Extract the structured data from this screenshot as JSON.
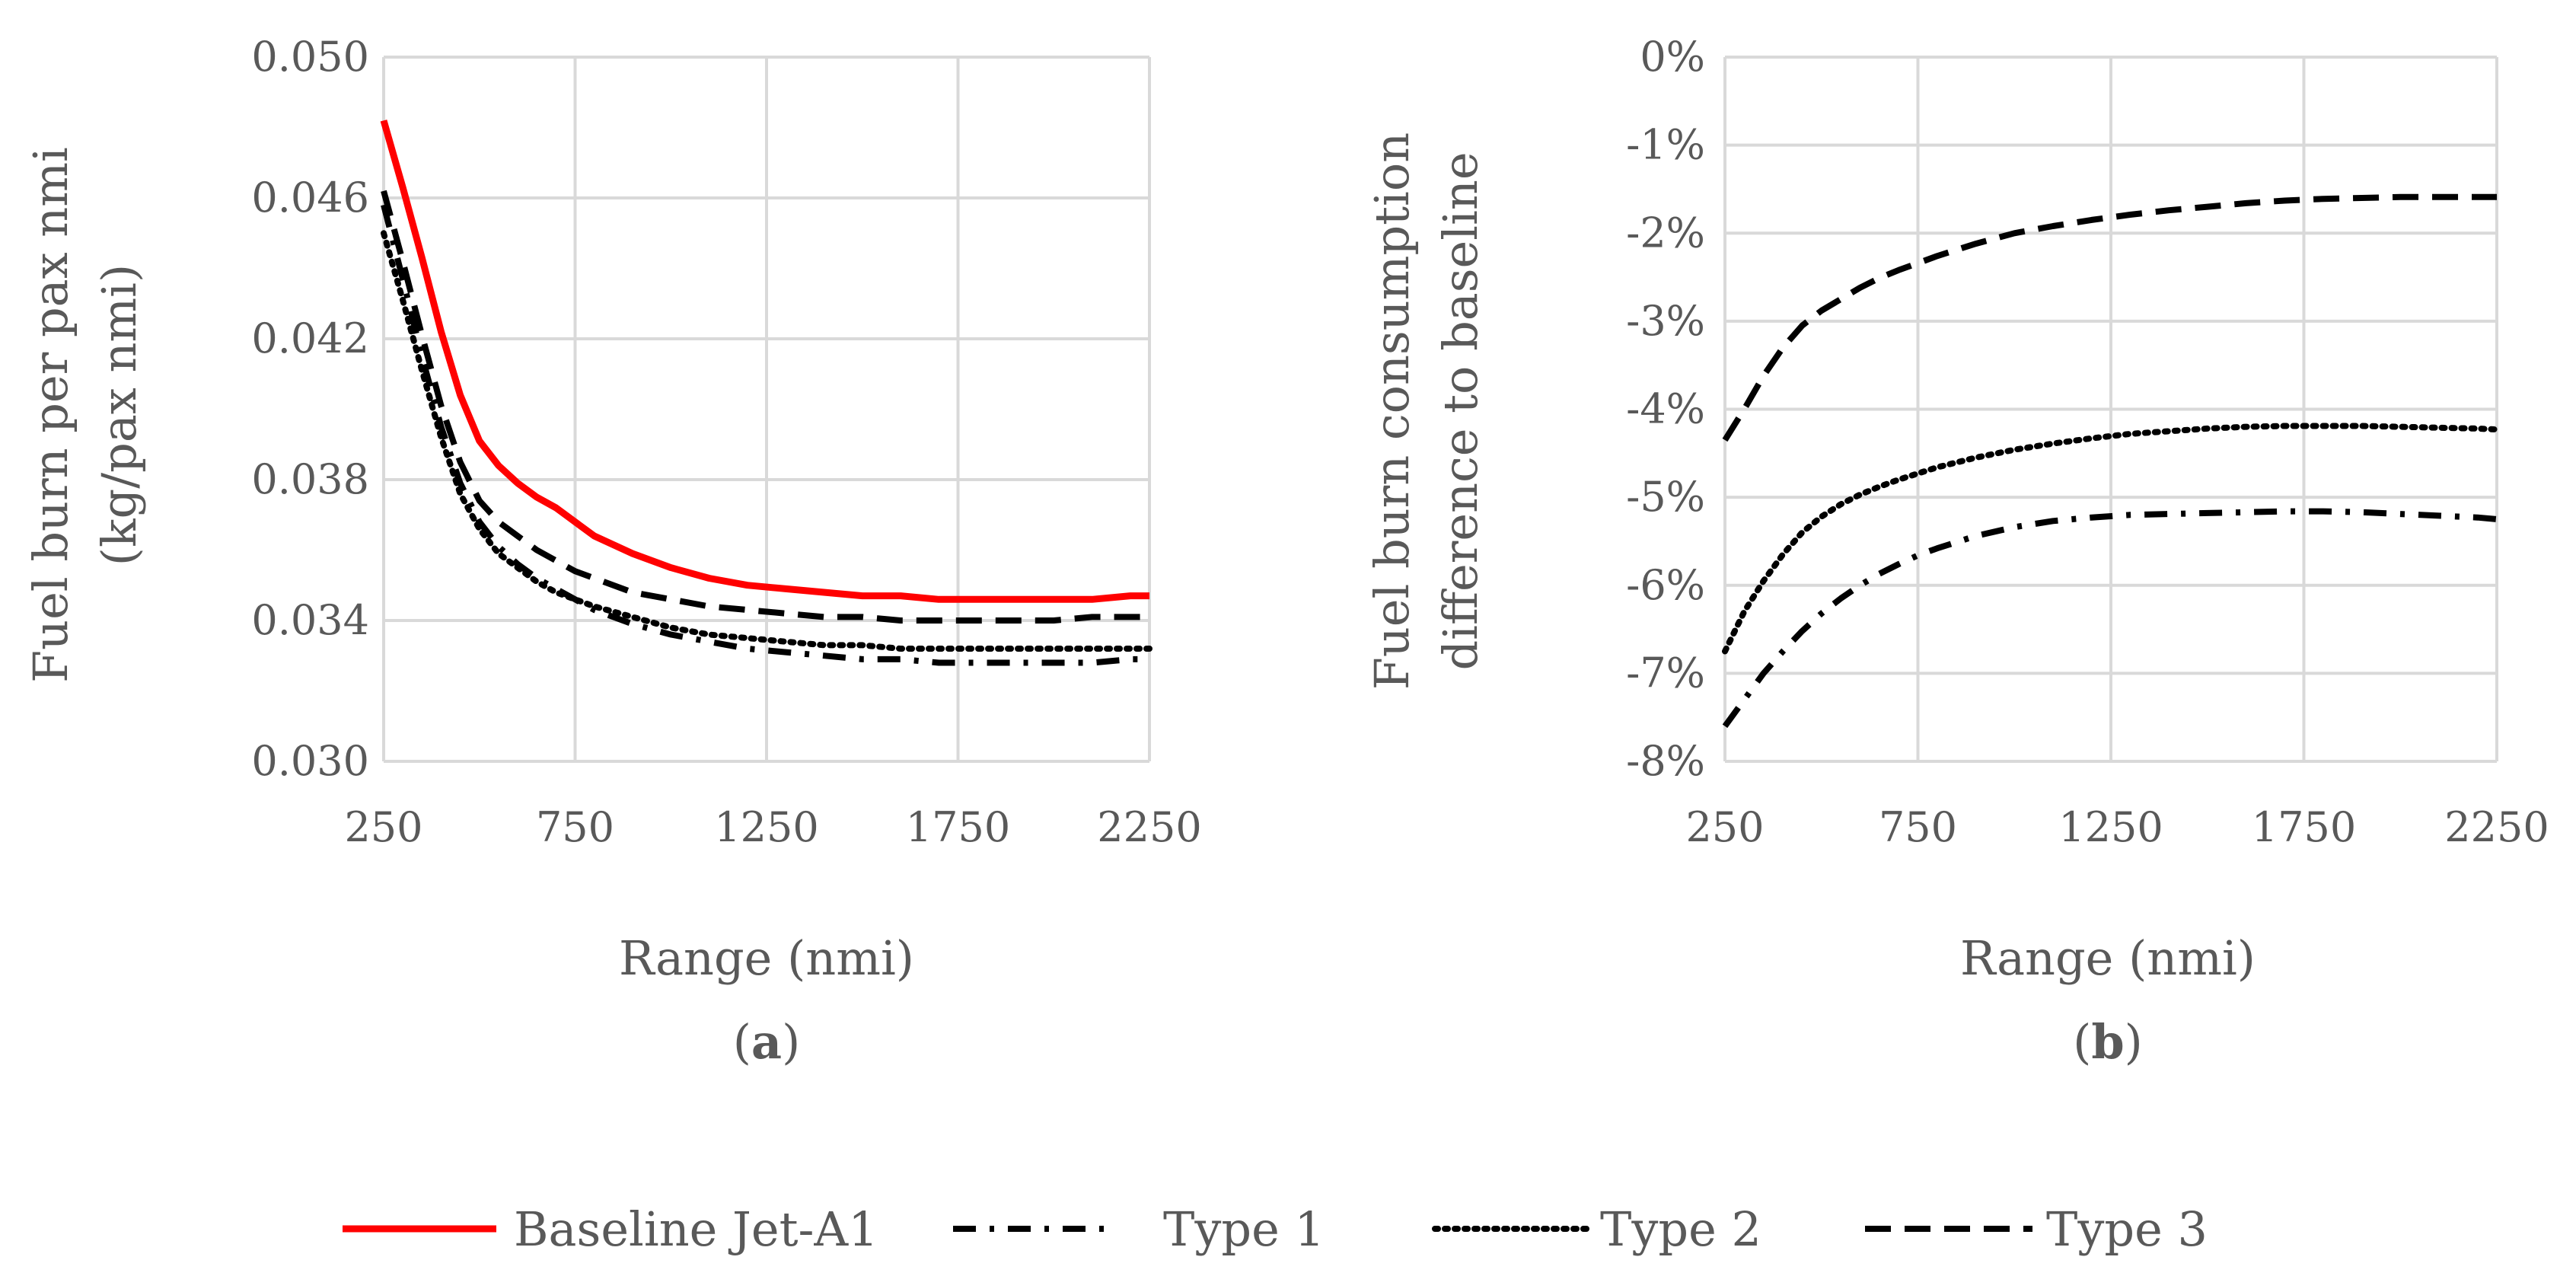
{
  "colors": {
    "baseline": "#ff0000",
    "types": "#000000",
    "grid": "#d9d9d9",
    "text": "#595959"
  },
  "chart_data": [
    {
      "type": "line",
      "xlabel": "Range (nmi)",
      "ylabel_lines": [
        "Fuel burn per pax nmi",
        "(kg/pax nmi)"
      ],
      "caption_letter": "a",
      "xlim": [
        250,
        2250
      ],
      "ylim": [
        0.03,
        0.05
      ],
      "xticks": [
        250,
        750,
        1250,
        1750,
        2250
      ],
      "yticks": [
        0.03,
        0.034,
        0.038,
        0.042,
        0.046,
        0.05
      ],
      "ytick_labels": [
        "0.030",
        "0.034",
        "0.038",
        "0.042",
        "0.046",
        "0.050"
      ],
      "x": [
        250,
        300,
        350,
        400,
        450,
        500,
        550,
        600,
        650,
        700,
        750,
        800,
        900,
        1000,
        1100,
        1200,
        1300,
        1400,
        1500,
        1600,
        1700,
        1800,
        1900,
        2000,
        2100,
        2200,
        2250
      ],
      "series": [
        {
          "name": "Baseline Jet-A1",
          "style": "solid",
          "values": [
            0.0482,
            0.0463,
            0.0443,
            0.0422,
            0.0404,
            0.0391,
            0.0384,
            0.0379,
            0.0375,
            0.0372,
            0.0368,
            0.0364,
            0.0359,
            0.0355,
            0.0352,
            0.035,
            0.0349,
            0.0348,
            0.0347,
            0.0347,
            0.0346,
            0.0346,
            0.0346,
            0.0346,
            0.0346,
            0.0347,
            0.0347
          ]
        },
        {
          "name": "Type 1",
          "style": "dashdot",
          "values": [
            0.0458,
            0.0437,
            0.0415,
            0.0395,
            0.0379,
            0.0368,
            0.0361,
            0.0356,
            0.0352,
            0.0349,
            0.0346,
            0.0343,
            0.0339,
            0.0336,
            0.0334,
            0.0332,
            0.0331,
            0.033,
            0.0329,
            0.0329,
            0.0328,
            0.0328,
            0.0328,
            0.0328,
            0.0328,
            0.0329,
            0.0329
          ]
        },
        {
          "name": "Type 2",
          "style": "dotted",
          "values": [
            0.045,
            0.0431,
            0.0411,
            0.0392,
            0.0376,
            0.0366,
            0.0359,
            0.0355,
            0.0351,
            0.0348,
            0.0346,
            0.0344,
            0.0341,
            0.0338,
            0.0336,
            0.0335,
            0.0334,
            0.0333,
            0.0333,
            0.0332,
            0.0332,
            0.0332,
            0.0332,
            0.0332,
            0.0332,
            0.0332,
            0.0332
          ]
        },
        {
          "name": "Type 3",
          "style": "dashed",
          "values": [
            0.0462,
            0.0442,
            0.0421,
            0.0401,
            0.0385,
            0.0374,
            0.0368,
            0.0364,
            0.036,
            0.0357,
            0.0354,
            0.0352,
            0.0348,
            0.0346,
            0.0344,
            0.0343,
            0.0342,
            0.0341,
            0.0341,
            0.034,
            0.034,
            0.034,
            0.034,
            0.034,
            0.0341,
            0.0341,
            0.0341
          ]
        }
      ]
    },
    {
      "type": "line",
      "xlabel": "Range (nmi)",
      "ylabel_lines": [
        "Fuel burn consumption",
        "difference to baseline"
      ],
      "caption_letter": "b",
      "xlim": [
        250,
        2250
      ],
      "ylim": [
        -8,
        0
      ],
      "xticks": [
        250,
        750,
        1250,
        1750,
        2250
      ],
      "yticks": [
        -8,
        -7,
        -6,
        -5,
        -4,
        -3,
        -2,
        -1,
        0
      ],
      "ytick_labels": [
        "-8%",
        "-7%",
        "-6%",
        "-5%",
        "-4%",
        "-3%",
        "-2%",
        "-1%",
        "0%"
      ],
      "x": [
        250,
        300,
        350,
        400,
        450,
        500,
        550,
        600,
        650,
        700,
        750,
        800,
        900,
        1000,
        1100,
        1200,
        1300,
        1400,
        1500,
        1600,
        1700,
        1800,
        1900,
        2000,
        2100,
        2200,
        2250
      ],
      "series": [
        {
          "name": "Type 1",
          "style": "dashdot",
          "values": [
            -7.6,
            -7.3,
            -7.0,
            -6.75,
            -6.52,
            -6.32,
            -6.15,
            -6.0,
            -5.87,
            -5.76,
            -5.66,
            -5.58,
            -5.44,
            -5.34,
            -5.27,
            -5.23,
            -5.2,
            -5.19,
            -5.18,
            -5.17,
            -5.16,
            -5.16,
            -5.17,
            -5.19,
            -5.21,
            -5.23,
            -5.25
          ]
        },
        {
          "name": "Type 2",
          "style": "dotted",
          "values": [
            -6.75,
            -6.3,
            -5.95,
            -5.65,
            -5.4,
            -5.22,
            -5.08,
            -4.97,
            -4.88,
            -4.8,
            -4.73,
            -4.66,
            -4.55,
            -4.46,
            -4.39,
            -4.33,
            -4.28,
            -4.25,
            -4.22,
            -4.2,
            -4.19,
            -4.19,
            -4.19,
            -4.2,
            -4.21,
            -4.22,
            -4.23
          ]
        },
        {
          "name": "Type 3",
          "style": "dashed",
          "values": [
            -4.35,
            -4.0,
            -3.62,
            -3.3,
            -3.05,
            -2.88,
            -2.75,
            -2.62,
            -2.51,
            -2.42,
            -2.34,
            -2.26,
            -2.12,
            -2.0,
            -1.92,
            -1.85,
            -1.79,
            -1.74,
            -1.7,
            -1.66,
            -1.63,
            -1.61,
            -1.6,
            -1.59,
            -1.59,
            -1.59,
            -1.59
          ]
        }
      ]
    }
  ],
  "legend": [
    {
      "label": "Baseline Jet-A1",
      "style": "solid"
    },
    {
      "label": "Type 1",
      "style": "dashdot"
    },
    {
      "label": "Type 2",
      "style": "dotted"
    },
    {
      "label": "Type 3",
      "style": "dashed"
    }
  ]
}
